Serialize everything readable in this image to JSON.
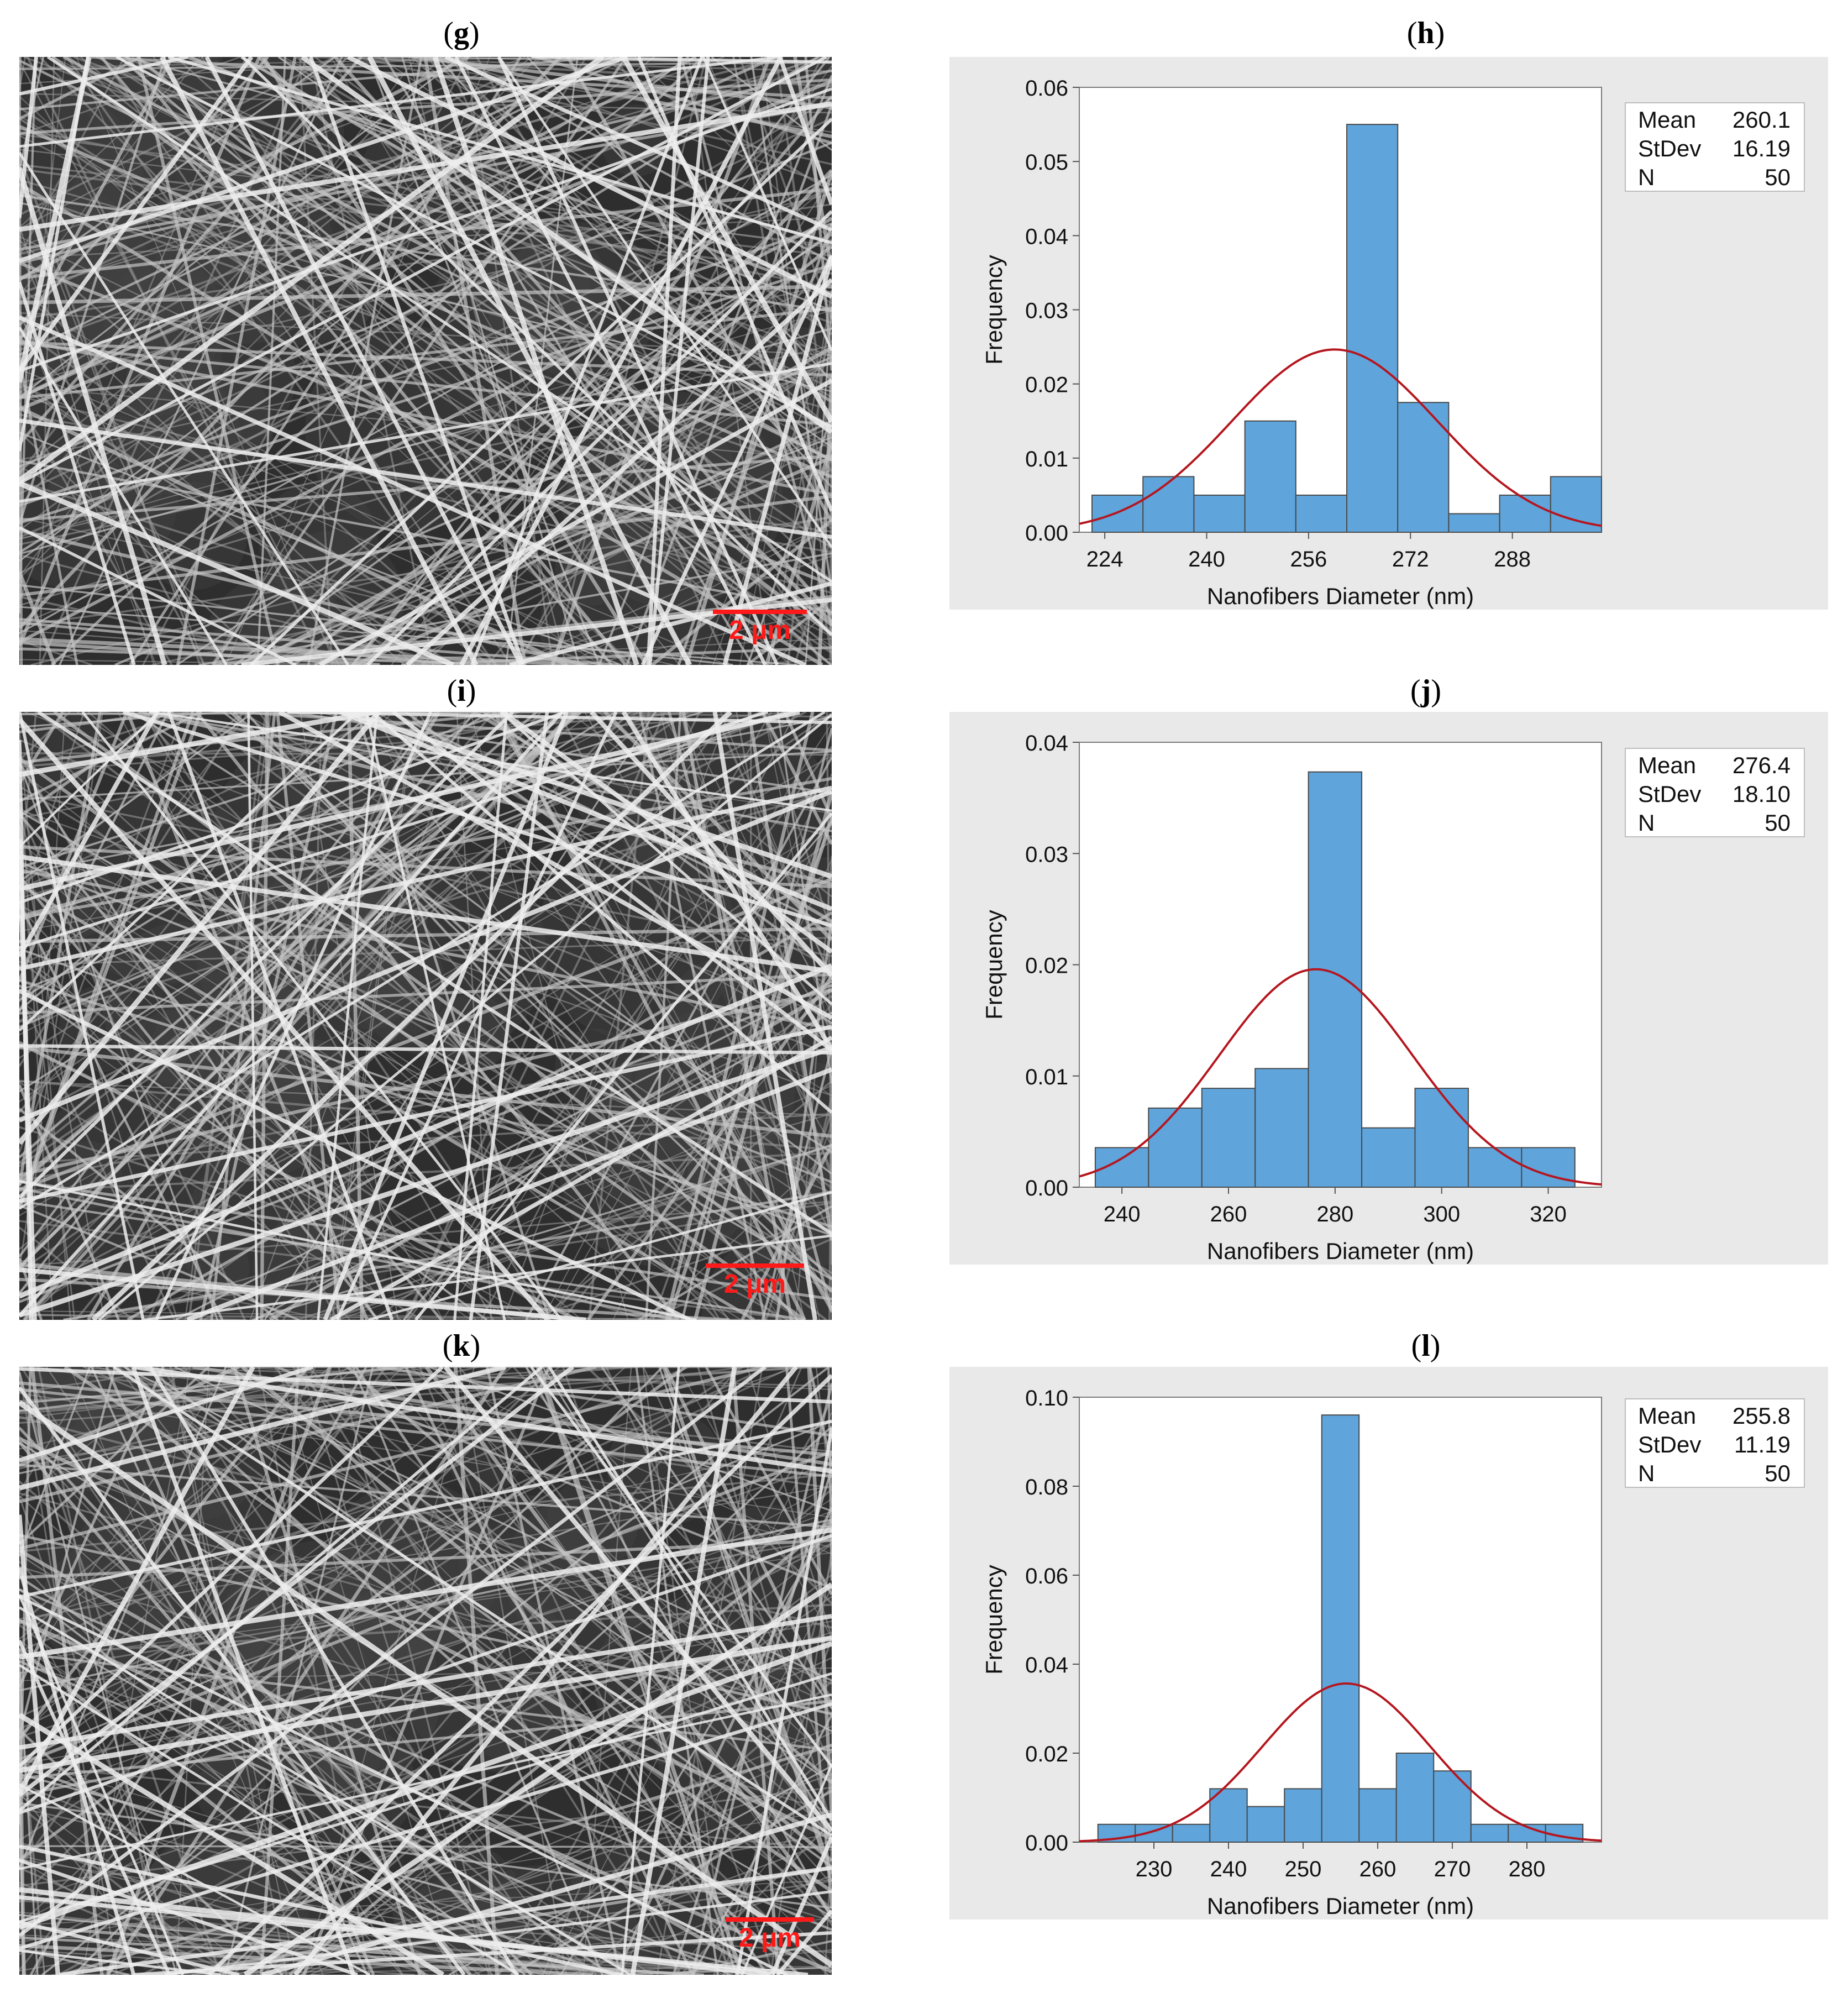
{
  "colors": {
    "bar_fill": "#5fa4db",
    "bar_stroke": "#4a4a4a",
    "curve": "#b5161e",
    "scale_bar": "#ff1a1a",
    "chart_bg": "#e9e9e9"
  },
  "panels": [
    {
      "sem_label": "g",
      "chart_label": "h",
      "scale_text": "2 μm"
    },
    {
      "sem_label": "i",
      "chart_label": "j",
      "scale_text": "2 μm"
    },
    {
      "sem_label": "k",
      "chart_label": "l",
      "scale_text": "2 μm"
    }
  ],
  "chart_data": [
    {
      "type": "bar",
      "xlabel": "Nanofibers Diameter (nm)",
      "ylabel": "Frequency",
      "xlim": [
        220,
        302
      ],
      "ylim": [
        0,
        0.06
      ],
      "xticks": [
        "224",
        "240",
        "256",
        "272",
        "288"
      ],
      "yticks": [
        "0.00",
        "0.01",
        "0.02",
        "0.03",
        "0.04",
        "0.05",
        "0.06"
      ],
      "bin_edges": [
        222,
        230,
        238,
        246,
        254,
        262,
        270,
        278,
        286,
        294,
        302
      ],
      "values": [
        0.005,
        0.0075,
        0.005,
        0.015,
        0.005,
        0.055,
        0.0175,
        0.0025,
        0.005,
        0.0075
      ],
      "fit": {
        "mean": 260.1,
        "stdev": 16.19
      },
      "stats": [
        {
          "label": "Mean",
          "value": "260.1"
        },
        {
          "label": "StDev",
          "value": "16.19"
        },
        {
          "label": "N",
          "value": "50"
        }
      ]
    },
    {
      "type": "bar",
      "xlabel": "Nanofibers Diameter (nm)",
      "ylabel": "Frequency",
      "xlim": [
        232,
        330
      ],
      "ylim": [
        0,
        0.045
      ],
      "xticks": [
        "240",
        "260",
        "280",
        "300",
        "320"
      ],
      "yticks": [
        "0.00",
        "0.01",
        "0.02",
        "0.03",
        "0.04"
      ],
      "bin_edges": [
        235,
        245,
        255,
        265,
        275,
        285,
        295,
        305,
        315,
        325
      ],
      "values": [
        0.004,
        0.008,
        0.01,
        0.012,
        0.042,
        0.006,
        0.01,
        0.004,
        0.004
      ],
      "fit": {
        "mean": 276.4,
        "stdev": 18.1
      },
      "stats": [
        {
          "label": "Mean",
          "value": "276.4"
        },
        {
          "label": "StDev",
          "value": "18.10"
        },
        {
          "label": "N",
          "value": "50"
        }
      ]
    },
    {
      "type": "bar",
      "xlabel": "Nanofibers Diameter (nm)",
      "ylabel": "Frequency",
      "xlim": [
        220,
        290
      ],
      "ylim": [
        0,
        0.1
      ],
      "xticks": [
        "230",
        "240",
        "250",
        "260",
        "270",
        "280"
      ],
      "yticks": [
        "0.00",
        "0.02",
        "0.04",
        "0.06",
        "0.08",
        "0.10"
      ],
      "bin_edges": [
        222.5,
        227.5,
        232.5,
        237.5,
        242.5,
        247.5,
        252.5,
        257.5,
        262.5,
        267.5,
        272.5,
        277.5,
        282.5,
        287.5
      ],
      "values": [
        0.004,
        0.004,
        0.004,
        0.012,
        0.008,
        0.012,
        0.096,
        0.012,
        0.02,
        0.016,
        0.004,
        0.004,
        0.004
      ],
      "fit": {
        "mean": 255.8,
        "stdev": 11.19
      },
      "stats": [
        {
          "label": "Mean",
          "value": "255.8"
        },
        {
          "label": "StDev",
          "value": "11.19"
        },
        {
          "label": "N",
          "value": "50"
        }
      ]
    }
  ]
}
